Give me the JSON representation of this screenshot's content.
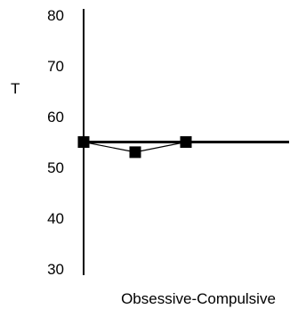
{
  "chart_data": {
    "type": "line",
    "ylabel": "T",
    "xlabel": "Obsessive-Compulsive",
    "ylim": [
      30,
      80
    ],
    "yticks": [
      80,
      70,
      60,
      50,
      40,
      30
    ],
    "reference_line": 55,
    "series": [
      {
        "values": [
          55,
          53,
          55
        ]
      }
    ],
    "grid": false,
    "legend": "none",
    "colors": {
      "line": "#000000",
      "marker": "#000000"
    }
  }
}
